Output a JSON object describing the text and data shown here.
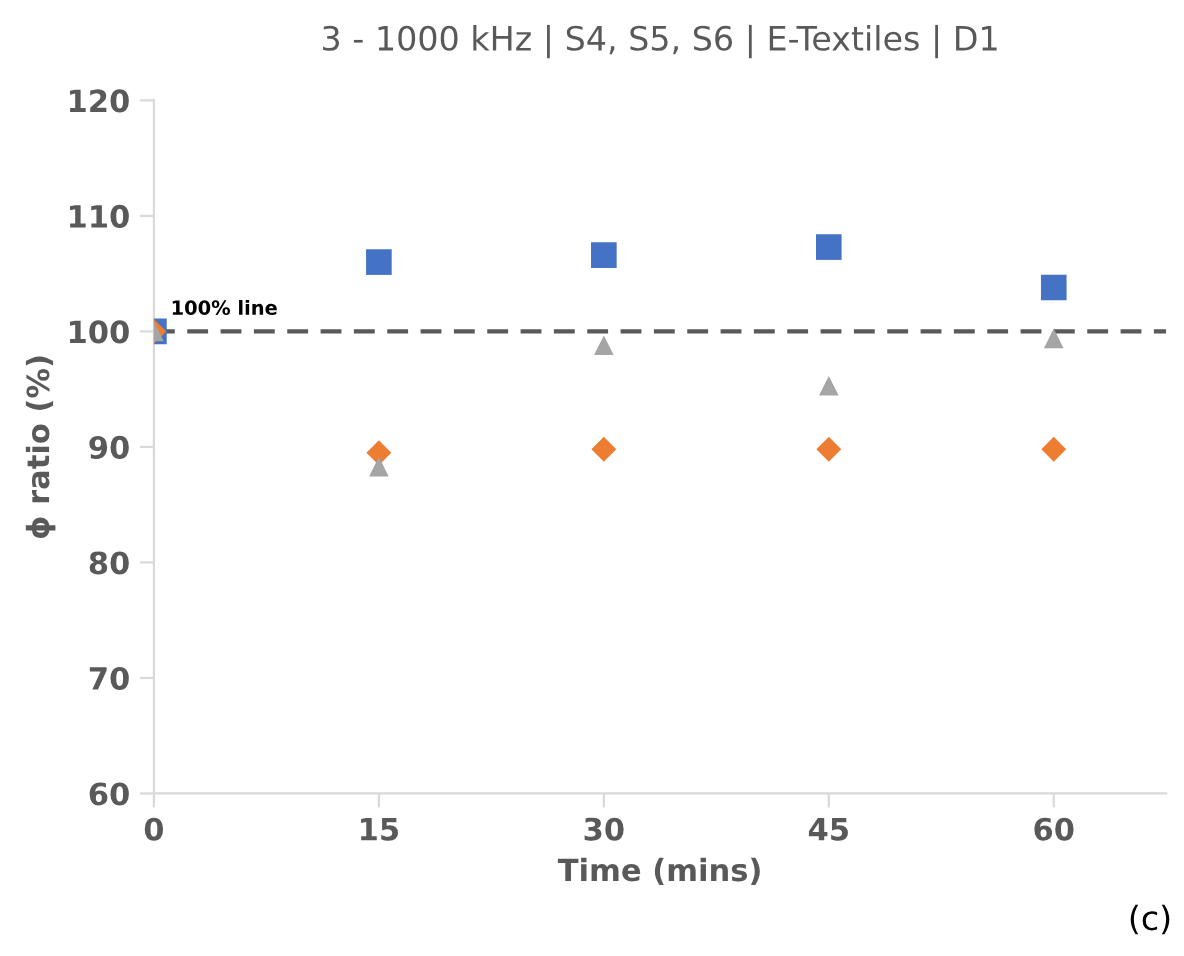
{
  "chart_data": {
    "type": "scatter",
    "title": "3 - 1000 kHz | S4, S5, S6 | E-Textiles | D1",
    "xlabel": "Time (mins)",
    "ylabel": "ϕ ratio (%)",
    "x": [
      0,
      15,
      30,
      45,
      60
    ],
    "series": [
      {
        "color": "#4472c4",
        "marker": "square",
        "values": [
          100,
          106,
          106.6,
          107.3,
          103.8
        ]
      },
      {
        "color": "#ed7d31",
        "marker": "diamond",
        "values": [
          100,
          89.5,
          89.8,
          89.8,
          89.8
        ]
      },
      {
        "color": "#a5a5a5",
        "marker": "triangle",
        "values": [
          100,
          88.3,
          98.8,
          95.3,
          99.4
        ]
      }
    ],
    "xlim": [
      0,
      67.5
    ],
    "xticks": [
      0,
      15,
      30,
      45,
      60
    ],
    "ylim": [
      60,
      120
    ],
    "yticks": [
      60,
      70,
      80,
      90,
      100,
      110,
      120
    ],
    "ref_lines": [
      {
        "axis": "y",
        "value": 100,
        "label": "100% line",
        "color": "#595959",
        "line_style": "dashed"
      }
    ],
    "annotations": [
      "(c)"
    ],
    "grid": false,
    "legend": false
  }
}
